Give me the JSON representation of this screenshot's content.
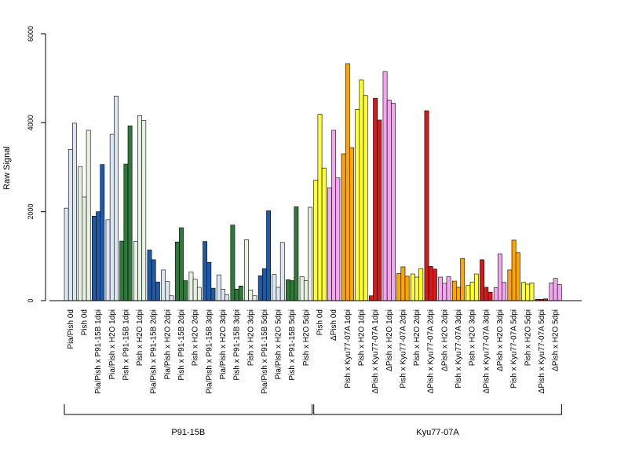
{
  "chart_data": {
    "type": "bar",
    "ylabel": "Raw Signal",
    "ylim": [
      0,
      6000
    ],
    "yticks": [
      0,
      2000,
      4000,
      6000
    ],
    "grid": false,
    "legend": "none",
    "categories": [
      "Pia/Pish 0d",
      "Pish 0d",
      "Pia/Pish x P91-15B 1dpi",
      "Pia/Pish x H2O 1dpi",
      "Pish x P91-15B 1dpi",
      "Pish x H2O 1dpi",
      "Pia/Pish x P91-15B 2dpi",
      "Pia/Pish x H2O 2dpi",
      "Pish x P91-15B 2dpi",
      "Pish x H2O 2dpi",
      "Pia/Pish x P91-15B 3dpi",
      "Pia/Pish x H2O 3dpi",
      "Pish x P91-15B 3dpi",
      "Pish x H2O 3dpi",
      "Pia/Pish x P91-15B 5dpi",
      "Pia/Pish x H2O 5dpi",
      "Pish x P91-15B 5dpi",
      "Pish x H2O 5dpi",
      "Pish 0d",
      "ΔPish 0d",
      "Pish x Kyu77-07A 1dpi",
      "Pish x H2O 1dpi",
      "ΔPish x Kyu77-07A 1dpi",
      "ΔPish x H2O 1dpi",
      "Pish x Kyu77-07A 2dpi",
      "Pish x H2O 2dpi",
      "ΔPish x Kyu77-07A 2dpi",
      "ΔPish x H2O 2dpi",
      "Pish x Kyu77-07A 3dpi",
      "Pish x H2O 3dpi",
      "ΔPish x Kyu77-07A 3dpi",
      "ΔPish x H2O 3dpi",
      "Pish x Kyu77-07A 5dpi",
      "Pish x H2O 5dpi",
      "ΔPish x Kyu77-07A 5dpi",
      "ΔPish x H2O 5dpi"
    ],
    "colors": [
      "#dce6f2",
      "#e6f1e1",
      "#1f5aa6",
      "#dce6f2",
      "#2d7a3a",
      "#e6f1e1",
      "#1f5aa6",
      "#dce6f2",
      "#2d7a3a",
      "#e6f1e1",
      "#1f5aa6",
      "#dce6f2",
      "#2d7a3a",
      "#e6f1e1",
      "#1f5aa6",
      "#dce6f2",
      "#2d7a3a",
      "#e6f1e1",
      "#ffff33",
      "#f4a6ee",
      "#ffa500",
      "#ffff33",
      "#d7191c",
      "#f4a6ee",
      "#ffa500",
      "#ffff33",
      "#d7191c",
      "#f4a6ee",
      "#ffa500",
      "#ffff33",
      "#d7191c",
      "#f4a6ee",
      "#ffa500",
      "#ffff33",
      "#d7191c",
      "#f4a6ee"
    ],
    "values": [
      [
        2080,
        3400,
        3990
      ],
      [
        3010,
        2330,
        3830
      ],
      [
        1900,
        2000,
        3060
      ],
      [
        1820,
        3740,
        4600
      ],
      [
        1340,
        3070,
        3930
      ],
      [
        1330,
        4160,
        4050
      ],
      [
        1140,
        920,
        420
      ],
      [
        690,
        430,
        110
      ],
      [
        1320,
        1640,
        450
      ],
      [
        640,
        480,
        300
      ],
      [
        1330,
        860,
        280
      ],
      [
        580,
        260,
        130
      ],
      [
        1700,
        260,
        330
      ],
      [
        1370,
        240,
        110
      ],
      [
        560,
        720,
        2020
      ],
      [
        590,
        300,
        1310
      ],
      [
        470,
        450,
        2110
      ],
      [
        540,
        450,
        2100
      ],
      [
        2710,
        4190,
        2980
      ],
      [
        2540,
        3830,
        2760
      ],
      [
        3300,
        5330,
        3440
      ],
      [
        4300,
        4960,
        4610
      ],
      [
        110,
        4550,
        4060
      ],
      [
        5150,
        4510,
        4440
      ],
      [
        610,
        760,
        550
      ],
      [
        600,
        530,
        720
      ],
      [
        4270,
        770,
        710
      ],
      [
        530,
        390,
        540
      ],
      [
        440,
        300,
        950
      ],
      [
        340,
        420,
        600
      ],
      [
        920,
        300,
        190
      ],
      [
        290,
        1050,
        410
      ],
      [
        690,
        1360,
        1080
      ],
      [
        410,
        370,
        400
      ],
      [
        30,
        30,
        40
      ],
      [
        400,
        500,
        360
      ]
    ],
    "groups": [
      {
        "name": "P91-15B",
        "start": 0,
        "end": 17
      },
      {
        "name": "Kyu77-07A",
        "start": 18,
        "end": 35
      }
    ]
  }
}
